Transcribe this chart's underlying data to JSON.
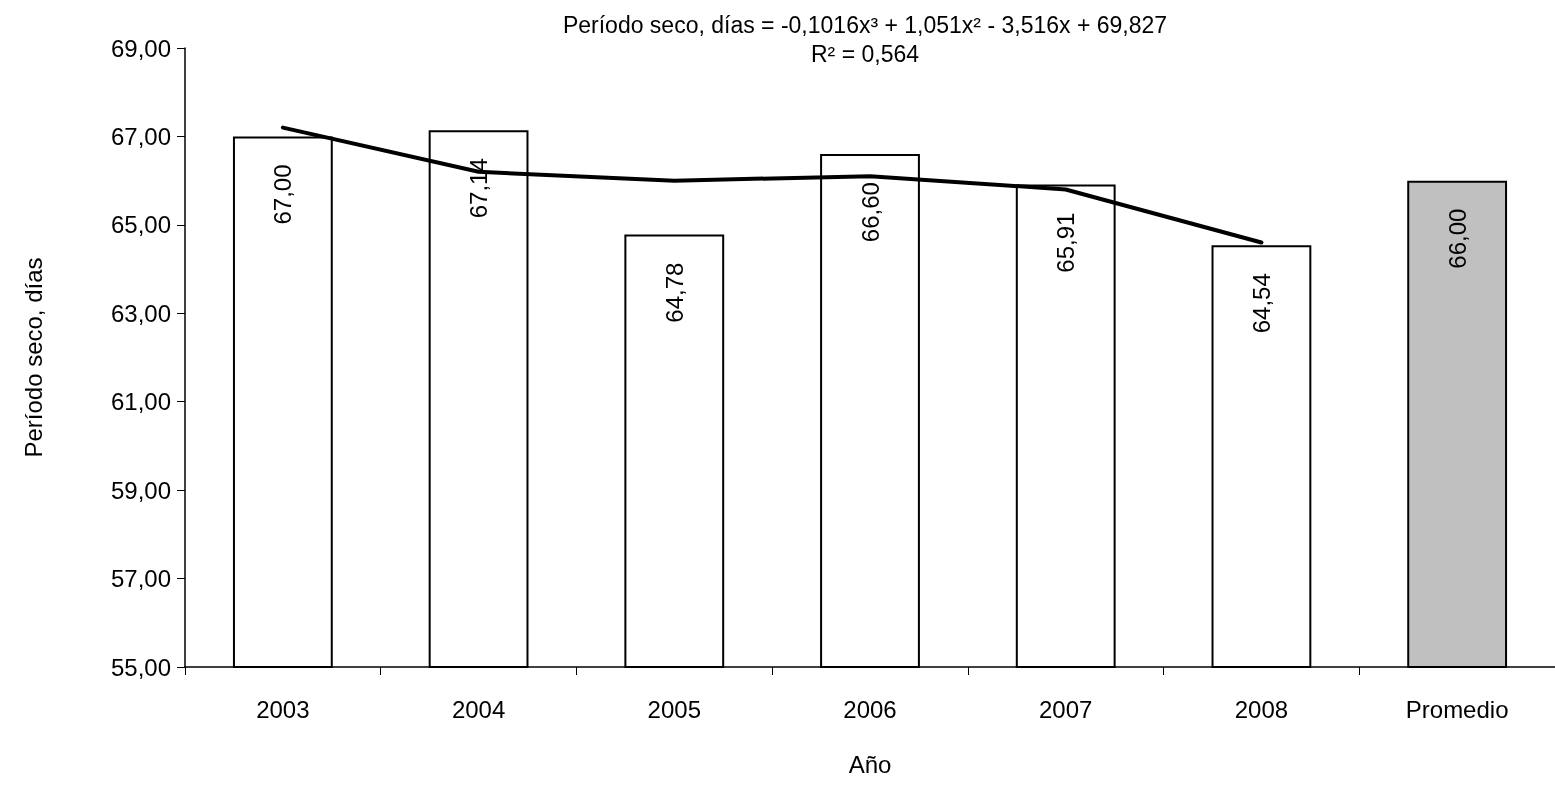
{
  "chart_data": {
    "type": "bar",
    "title": "Período seco, días = -0,1016x³ + 1,051x² - 3,516x + 69,827",
    "subtitle": "R² = 0,564",
    "xlabel": "Año",
    "ylabel": "Período seco, días",
    "categories": [
      "2003",
      "2004",
      "2005",
      "2006",
      "2007",
      "2008",
      "Promedio"
    ],
    "series": [
      {
        "values": [
          67.0,
          67.14,
          64.78,
          66.6,
          65.91,
          64.54,
          66.0
        ],
        "colors": [
          "#ffffff",
          "#ffffff",
          "#ffffff",
          "#ffffff",
          "#ffffff",
          "#ffffff",
          "#c0c0c0"
        ],
        "value_labels": [
          "67,00",
          "67,14",
          "64,78",
          "66,60",
          "65,91",
          "64,54",
          "66,00"
        ]
      },
      {
        "type": "line",
        "values": [
          67.2,
          66.2,
          66.0,
          66.1,
          65.8,
          64.6,
          null
        ],
        "color": "#000000"
      }
    ],
    "ylim": [
      55,
      69
    ],
    "yticks": [
      {
        "value": 55,
        "label": "55,00"
      },
      {
        "value": 57,
        "label": "57,00"
      },
      {
        "value": 59,
        "label": "59,00"
      },
      {
        "value": 61,
        "label": "61,00"
      },
      {
        "value": 63,
        "label": "63,00"
      },
      {
        "value": 65,
        "label": "65,00"
      },
      {
        "value": 67,
        "label": "67,00"
      },
      {
        "value": 69,
        "label": "69,00"
      }
    ],
    "grid": false,
    "marker": "none",
    "line_style": "solid"
  }
}
